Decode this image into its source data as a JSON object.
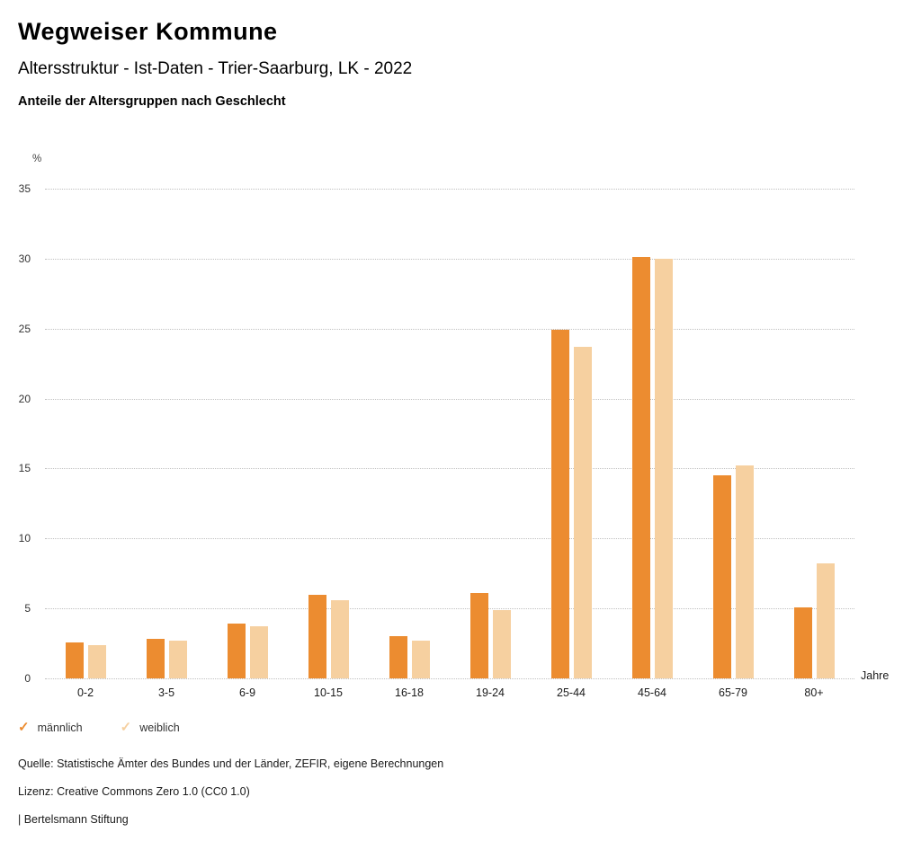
{
  "header": {
    "title": "Wegweiser Kommune",
    "subtitle": "Altersstruktur - Ist-Daten - Trier-Saarburg, LK - 2022",
    "chart_heading": "Anteile der Altersgruppen nach Geschlecht"
  },
  "chart_data": {
    "type": "bar",
    "categories": [
      "0-2",
      "3-5",
      "6-9",
      "10-15",
      "16-18",
      "19-24",
      "25-44",
      "45-64",
      "65-79",
      "80+"
    ],
    "series": [
      {
        "name": "männlich",
        "color": "#EC8C30",
        "values": [
          2.6,
          2.8,
          3.9,
          6.0,
          3.0,
          6.1,
          24.9,
          30.1,
          14.5,
          5.1
        ]
      },
      {
        "name": "weiblich",
        "color": "#F6D0A0",
        "values": [
          2.4,
          2.7,
          3.7,
          5.6,
          2.7,
          4.9,
          23.7,
          30.0,
          15.2,
          8.2
        ]
      }
    ],
    "y_unit_label": "%",
    "x_unit_label": "Jahre",
    "ylim": [
      0,
      35
    ],
    "ytick_step": 5,
    "grid": "horizontal-dotted",
    "legend_position": "bottom-left"
  },
  "legend": [
    {
      "label": "männlich",
      "color": "#EC8C30"
    },
    {
      "label": "weiblich",
      "color": "#F6D0A0"
    }
  ],
  "footer": {
    "source": "Quelle: Statistische Ämter des Bundes und der Länder, ZEFIR, eigene Berechnungen",
    "license": "Lizenz: Creative Commons Zero 1.0 (CC0 1.0)",
    "attribution": "| Bertelsmann Stiftung"
  }
}
